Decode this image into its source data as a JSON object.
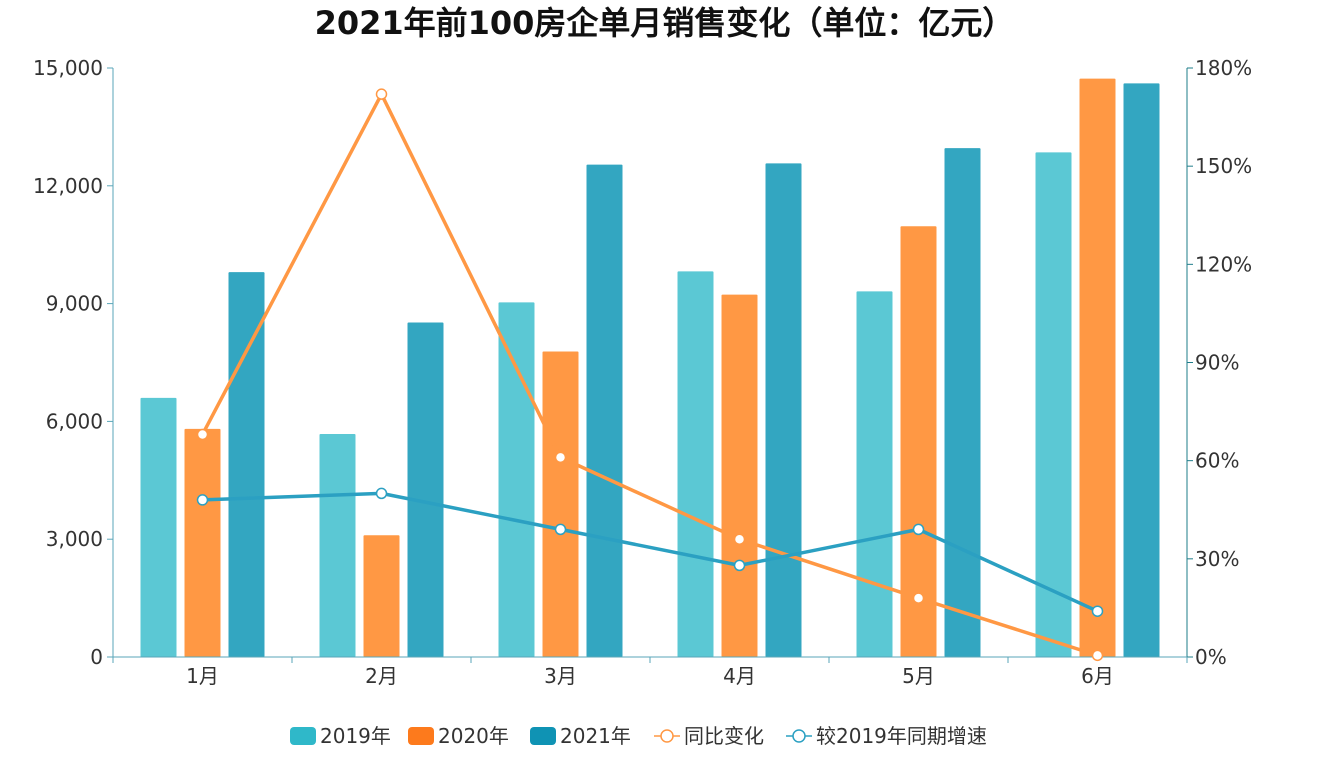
{
  "chart_data": {
    "type": "bar",
    "title": "2021年前100房企单月销售变化（单位：亿元）",
    "categories": [
      "1月",
      "2月",
      "3月",
      "4月",
      "5月",
      "6月"
    ],
    "y_left": {
      "range": [
        0,
        15000
      ],
      "ticks": [
        0,
        3000,
        6000,
        9000,
        12000,
        15000
      ],
      "tick_labels": [
        "0",
        "3,000",
        "6,000",
        "9,000",
        "12,000",
        "15,000"
      ]
    },
    "y_right": {
      "range": [
        0,
        180
      ],
      "ticks": [
        0,
        30,
        60,
        90,
        120,
        150,
        180
      ],
      "tick_labels": [
        "0%",
        "30%",
        "60%",
        "90%",
        "120%",
        "150%",
        "180%"
      ]
    },
    "series": [
      {
        "name": "2019年",
        "kind": "bar",
        "axis": "left",
        "color": "#5bc8d4",
        "values": [
          6600,
          5680,
          9030,
          9820,
          9310,
          12850
        ]
      },
      {
        "name": "2020年",
        "kind": "bar",
        "axis": "left",
        "color": "#ff9844",
        "values": [
          5810,
          3100,
          7780,
          9230,
          10970,
          14730
        ]
      },
      {
        "name": "2021年",
        "kind": "bar",
        "axis": "left",
        "color": "#33a6c1",
        "values": [
          9800,
          8520,
          12540,
          12570,
          12960,
          14610
        ]
      },
      {
        "name": "同比变化",
        "kind": "line",
        "axis": "right",
        "color": "#ff9844",
        "values": [
          68,
          172,
          61,
          36,
          18,
          0.5
        ]
      },
      {
        "name": "较2019年同期增速",
        "kind": "line",
        "axis": "right",
        "color": "#2ba0c2",
        "values": [
          48,
          50,
          39,
          28,
          39,
          14
        ]
      }
    ],
    "legend_position": "bottom-center",
    "grid": false
  },
  "legend": {
    "items": [
      "2019年",
      "2020年",
      "2021年",
      "同比变化",
      "较2019年同期增速"
    ],
    "swatch_colors": [
      "#2fb8c9",
      "#fd7a1c",
      "#0f93b4",
      "#ff9844",
      "#2ba0c2"
    ]
  },
  "axis_colors": {
    "left": "#5aa6b8",
    "right": "#1e7c8a",
    "bottom": "#5aa6b8"
  }
}
